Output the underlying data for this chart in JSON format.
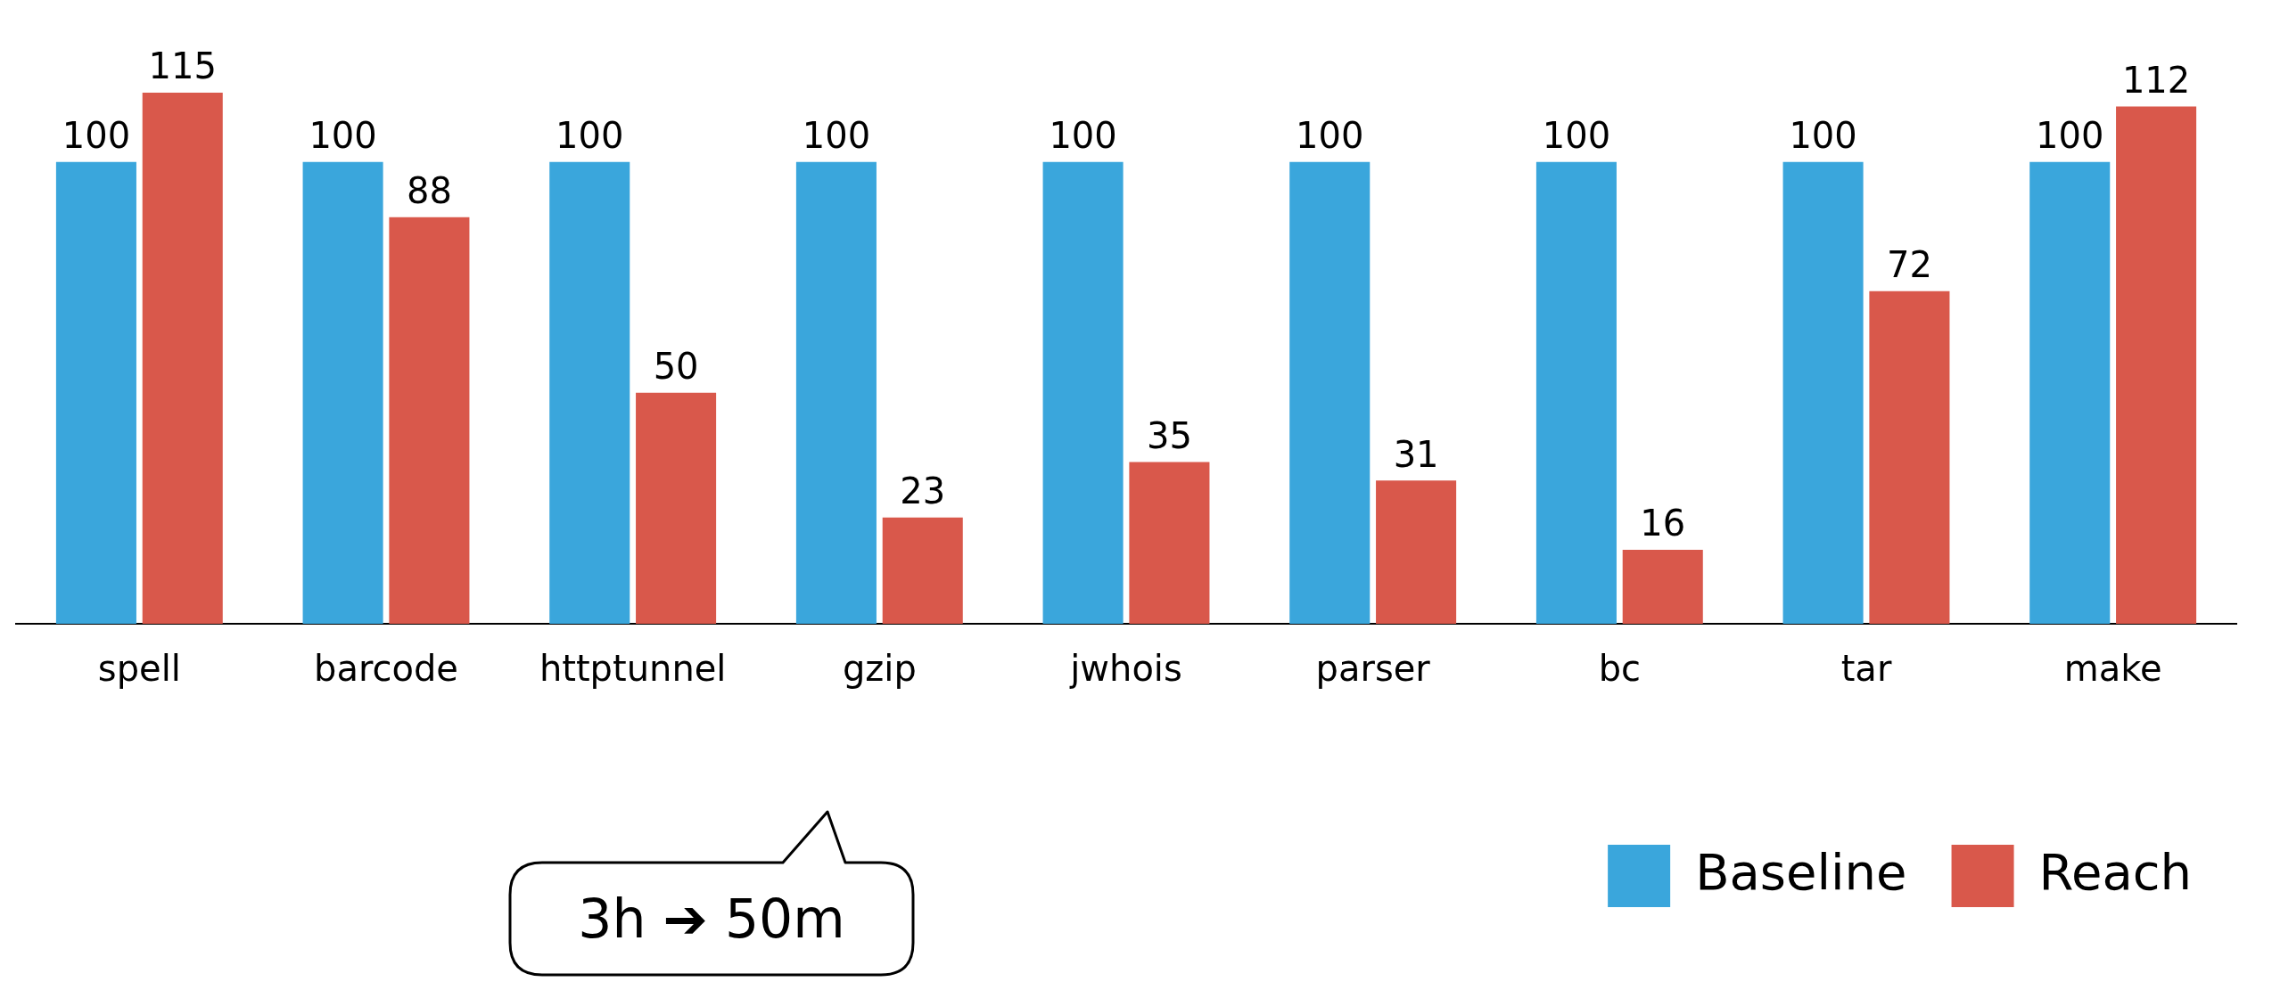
{
  "chart_data": {
    "type": "bar",
    "categories": [
      "spell",
      "barcode",
      "httptunnel",
      "gzip",
      "jwhois",
      "parser",
      "bc",
      "tar",
      "make"
    ],
    "series": [
      {
        "name": "Baseline",
        "color": "#3aa6dc",
        "values": [
          100,
          100,
          100,
          100,
          100,
          100,
          100,
          100,
          100
        ]
      },
      {
        "name": "Reach",
        "color": "#d9584b",
        "values": [
          115,
          88,
          50,
          23,
          35,
          31,
          16,
          72,
          112
        ]
      }
    ],
    "data_labels": true,
    "legend": "bottom right",
    "grid": false,
    "annotations": [
      "3h ➔ 50m"
    ]
  }
}
